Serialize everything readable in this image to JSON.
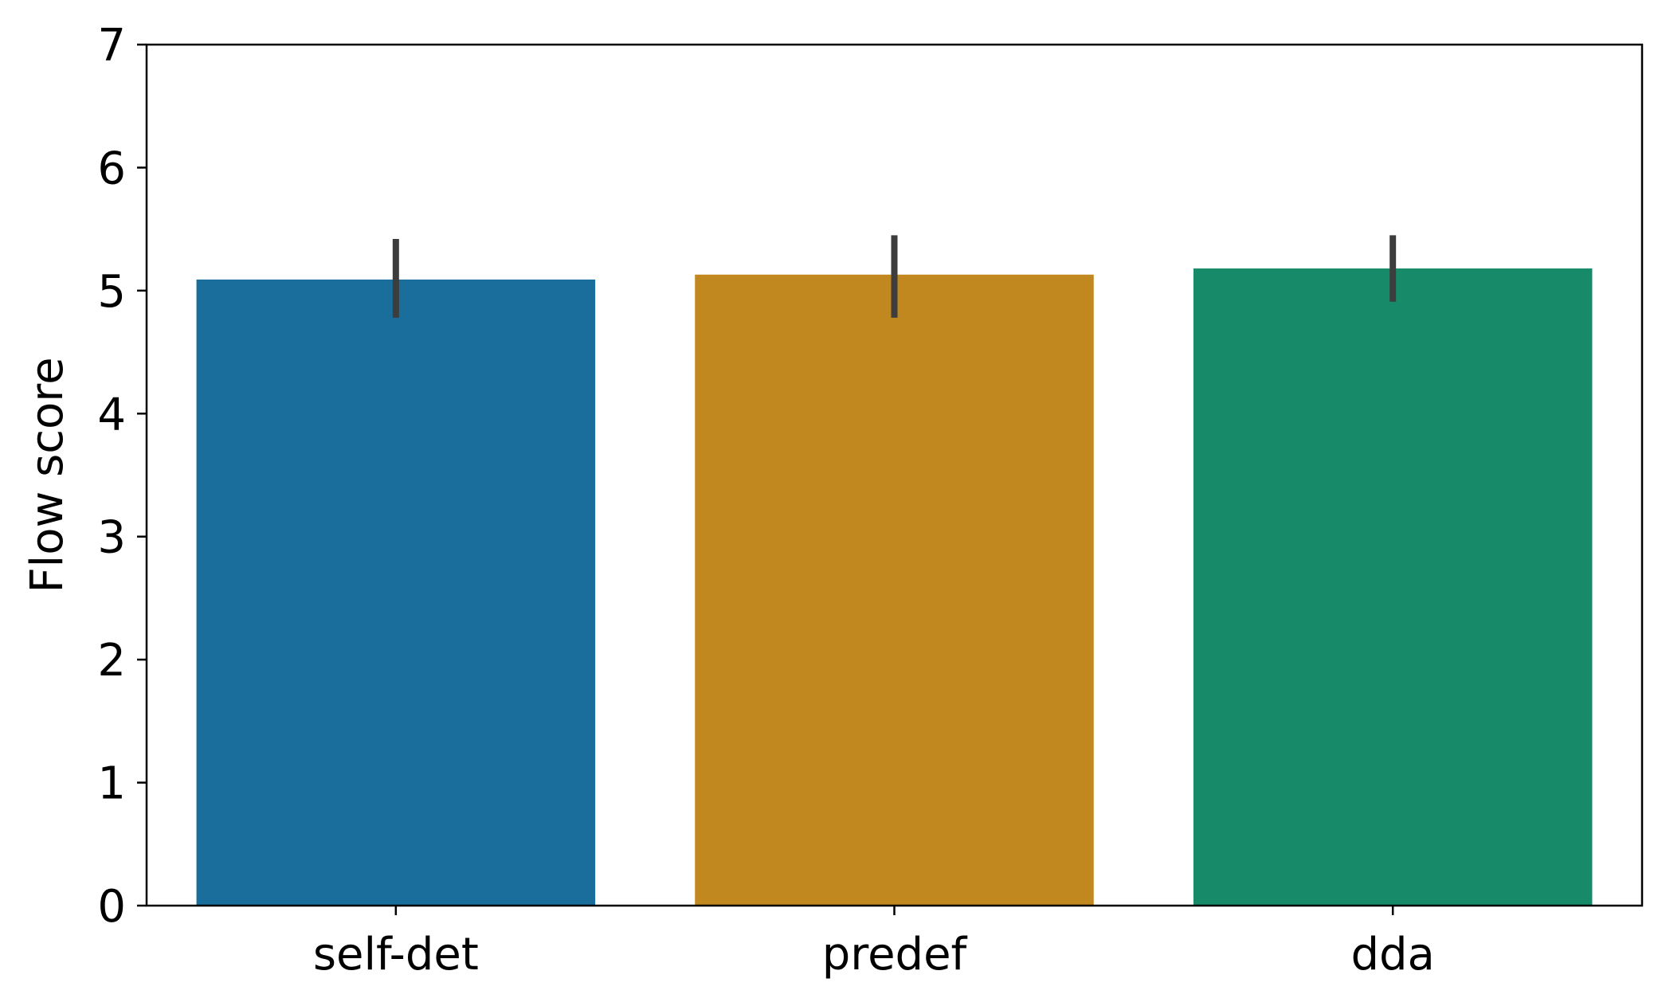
{
  "chart_data": {
    "type": "bar",
    "title": "",
    "xlabel": "",
    "ylabel": "Flow score",
    "categories": [
      "self-det",
      "predef",
      "dda"
    ],
    "values": [
      5.09,
      5.13,
      5.18
    ],
    "error_bars": [
      {
        "low": 4.78,
        "high": 5.42
      },
      {
        "low": 4.78,
        "high": 5.45
      },
      {
        "low": 4.91,
        "high": 5.45
      }
    ],
    "colors": [
      "#1a6e9c",
      "#c28820",
      "#178b69"
    ],
    "error_bar_color": "#3d3d3d",
    "ylim": [
      0,
      7
    ],
    "yticks": [
      0,
      1,
      2,
      3,
      4,
      5,
      6,
      7
    ],
    "grid": false,
    "legend": "none"
  }
}
